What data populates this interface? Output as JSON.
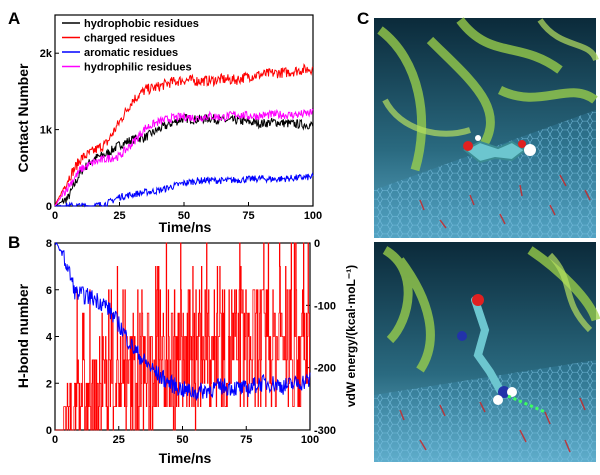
{
  "chart_data": [
    {
      "panel": "A",
      "type": "line",
      "xlabel": "Time/ns",
      "ylabel": "Contact Number",
      "xlim": [
        0,
        100
      ],
      "ylim": [
        0,
        2500
      ],
      "x_ticks": [
        0,
        25,
        50,
        75,
        100
      ],
      "x_tick_labels": [
        "0",
        "25",
        "50",
        "75",
        "100"
      ],
      "y_ticks": [
        0,
        1000,
        2000
      ],
      "y_tick_labels": [
        "0",
        "1k",
        "2k"
      ],
      "legend_position": "top-left",
      "series": [
        {
          "name": "hydrophobic residues",
          "color": "#000000",
          "x": [
            0,
            5,
            10,
            15,
            20,
            25,
            30,
            35,
            40,
            45,
            50,
            55,
            60,
            65,
            70,
            75,
            80,
            85,
            90,
            95,
            100
          ],
          "y": [
            0,
            100,
            450,
            620,
            680,
            800,
            870,
            900,
            1000,
            1080,
            1150,
            1130,
            1150,
            1120,
            1120,
            1100,
            1080,
            1100,
            1080,
            1070,
            1060
          ]
        },
        {
          "name": "charged residues",
          "color": "#ff0000",
          "x": [
            0,
            5,
            10,
            15,
            20,
            25,
            30,
            35,
            40,
            45,
            50,
            55,
            60,
            65,
            70,
            75,
            80,
            85,
            90,
            95,
            100
          ],
          "y": [
            0,
            350,
            620,
            720,
            820,
            1100,
            1380,
            1520,
            1560,
            1620,
            1650,
            1640,
            1640,
            1660,
            1650,
            1700,
            1720,
            1740,
            1750,
            1780,
            1800
          ]
        },
        {
          "name": "aromatic residues",
          "color": "#0000ff",
          "x": [
            0,
            5,
            10,
            15,
            20,
            25,
            30,
            35,
            40,
            45,
            50,
            55,
            60,
            65,
            70,
            75,
            80,
            85,
            90,
            95,
            100
          ],
          "y": [
            0,
            0,
            0,
            0,
            30,
            120,
            150,
            180,
            200,
            250,
            300,
            330,
            340,
            330,
            340,
            350,
            360,
            350,
            360,
            370,
            380
          ]
        },
        {
          "name": "hydrophilic residues",
          "color": "#ff00ff",
          "x": [
            0,
            5,
            10,
            15,
            20,
            25,
            30,
            35,
            40,
            45,
            50,
            55,
            60,
            65,
            70,
            75,
            80,
            85,
            90,
            95,
            100
          ],
          "y": [
            0,
            250,
            480,
            570,
            620,
            650,
            820,
            1020,
            1100,
            1150,
            1170,
            1150,
            1180,
            1160,
            1200,
            1180,
            1180,
            1200,
            1190,
            1200,
            1220
          ]
        }
      ]
    },
    {
      "panel": "B",
      "type": "line",
      "xlabel": "Time/ns",
      "ylabel": "H-bond number",
      "y2label": "vdW energy/(kcal·moL⁻¹)",
      "xlim": [
        0,
        100
      ],
      "ylim": [
        0,
        8
      ],
      "y2lim": [
        -300,
        0
      ],
      "x_ticks": [
        0,
        25,
        50,
        75,
        100
      ],
      "x_tick_labels": [
        "0",
        "25",
        "50",
        "75",
        "100"
      ],
      "y_ticks": [
        0,
        2,
        4,
        6,
        8
      ],
      "y_tick_labels": [
        "0",
        "2",
        "4",
        "6",
        "8"
      ],
      "y2_ticks": [
        -300,
        -200,
        -100,
        0
      ],
      "y2_tick_labels": [
        "-300",
        "-200",
        "-100",
        "0"
      ],
      "series": [
        {
          "name": "H-bond number",
          "axis": "left",
          "color": "#ff0000",
          "x": [
            0,
            10,
            20,
            30,
            40,
            50,
            60,
            70,
            80,
            90,
            100
          ],
          "y": [
            0,
            1,
            2,
            2,
            3,
            3,
            3.5,
            3.5,
            3.5,
            3.5,
            3.5
          ]
        },
        {
          "name": "vdW energy",
          "axis": "right",
          "color": "#0000ff",
          "x": [
            0,
            2,
            5,
            8,
            12,
            16,
            20,
            25,
            30,
            35,
            40,
            45,
            50,
            55,
            60,
            65,
            70,
            75,
            80,
            85,
            90,
            95,
            100
          ],
          "y": [
            0,
            -10,
            -40,
            -80,
            -85,
            -90,
            -100,
            -130,
            -165,
            -190,
            -210,
            -225,
            -235,
            -240,
            -235,
            -230,
            -232,
            -235,
            -225,
            -225,
            -230,
            -225,
            -220
          ]
        }
      ]
    }
  ],
  "panel_c": {
    "letter": "C",
    "colors": {
      "background": "#1a4a5c",
      "protein": "#8cc63f",
      "graphene": "#4fb0d8",
      "molecule": "#6cc6cf"
    }
  }
}
